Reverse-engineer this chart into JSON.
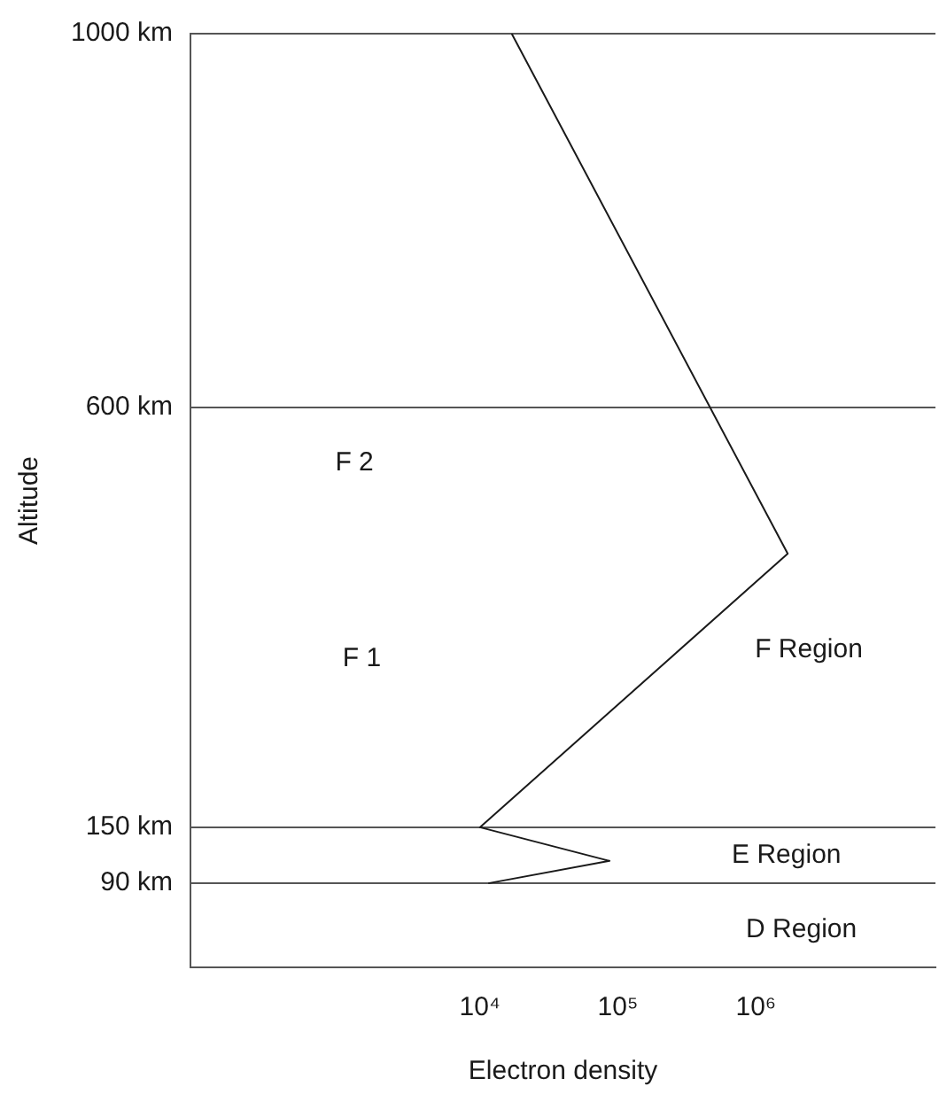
{
  "chart_data": {
    "type": "line",
    "xlabel": "Electron density",
    "ylabel": "Altitude",
    "x": [
      17000,
      1700000,
      10000,
      87000,
      11500
    ],
    "series": [
      {
        "color": "#1a1a1a",
        "values": [
          1000,
          443,
          150,
          114,
          90
        ]
      }
    ],
    "log": "x",
    "xlim": [
      80,
      20000000
    ],
    "xticks": [
      {
        "value": 10000,
        "label": "10⁴"
      },
      {
        "value": 100000,
        "label": "10⁵"
      },
      {
        "value": 1000000,
        "label": "10⁶"
      }
    ],
    "ylim": [
      0,
      1000
    ],
    "yticks": [
      {
        "value": 90,
        "label": "90 km"
      },
      {
        "value": 150,
        "label": "150 km"
      },
      {
        "value": 600,
        "label": "600 km"
      },
      {
        "value": 1000,
        "label": "1000 km"
      }
    ],
    "grid": "y",
    "legend": false,
    "marker": "none",
    "line_style": "solid",
    "annotations": [
      "F 2",
      "F 1",
      "F Region",
      "E Region",
      "D Region"
    ]
  }
}
